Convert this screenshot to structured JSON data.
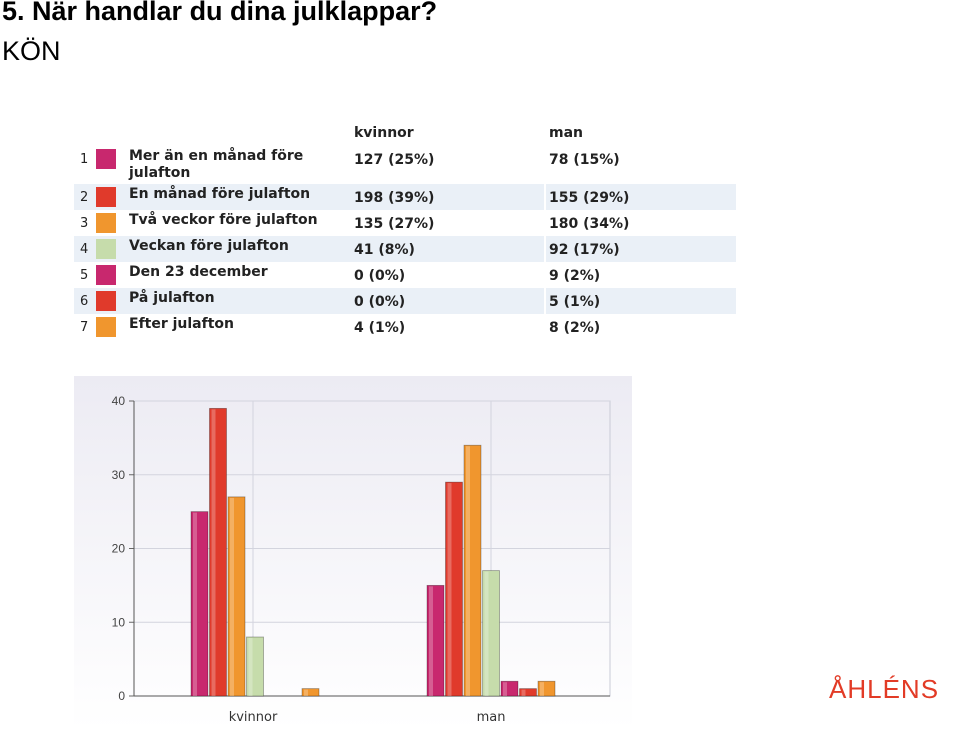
{
  "title": "5. När handlar du dina julklappar?",
  "subtitle": "KÖN",
  "brand": "ÅHLÉNS",
  "table": {
    "headers": [
      "kvinnor",
      "man"
    ],
    "rows": [
      {
        "num": "1",
        "label": "Mer än en månad före julafton",
        "kvinnor": "127 (25%)",
        "man": "78 (15%)",
        "color": "#c8286e"
      },
      {
        "num": "2",
        "label": "En månad före julafton",
        "kvinnor": "198 (39%)",
        "man": "155 (29%)",
        "color": "#e03a2b"
      },
      {
        "num": "3",
        "label": "Två veckor före julafton",
        "kvinnor": "135 (27%)",
        "man": "180 (34%)",
        "color": "#f0962e"
      },
      {
        "num": "4",
        "label": "Veckan före julafton",
        "kvinnor": "41 (8%)",
        "man": "92 (17%)",
        "color": "#c6dcab"
      },
      {
        "num": "5",
        "label": "Den 23 december",
        "kvinnor": "0 (0%)",
        "man": "9 (2%)",
        "color": "#c8286e"
      },
      {
        "num": "6",
        "label": "På julafton",
        "kvinnor": "0 (0%)",
        "man": "5 (1%)",
        "color": "#e03a2b"
      },
      {
        "num": "7",
        "label": "Efter julafton",
        "kvinnor": "4 (1%)",
        "man": "8 (2%)",
        "color": "#f0962e"
      }
    ]
  },
  "chart_data": {
    "type": "bar",
    "categories": [
      "kvinnor",
      "man"
    ],
    "ylim": [
      0,
      40
    ],
    "yticks": [
      0,
      10,
      20,
      30,
      40
    ],
    "grid": true,
    "series": [
      {
        "name": "Mer än en månad före julafton",
        "color": "#c8286e",
        "values": [
          25,
          15
        ]
      },
      {
        "name": "En månad före julafton",
        "color": "#e03a2b",
        "values": [
          39,
          29
        ]
      },
      {
        "name": "Två veckor före julafton",
        "color": "#f0962e",
        "values": [
          27,
          34
        ]
      },
      {
        "name": "Veckan före julafton",
        "color": "#c6dcab",
        "values": [
          8,
          17
        ]
      },
      {
        "name": "Den 23 december",
        "color": "#c8286e",
        "values": [
          0,
          2
        ]
      },
      {
        "name": "På julafton",
        "color": "#e03a2b",
        "values": [
          0,
          1
        ]
      },
      {
        "name": "Efter julafton",
        "color": "#f0962e",
        "values": [
          1,
          2
        ]
      }
    ]
  }
}
